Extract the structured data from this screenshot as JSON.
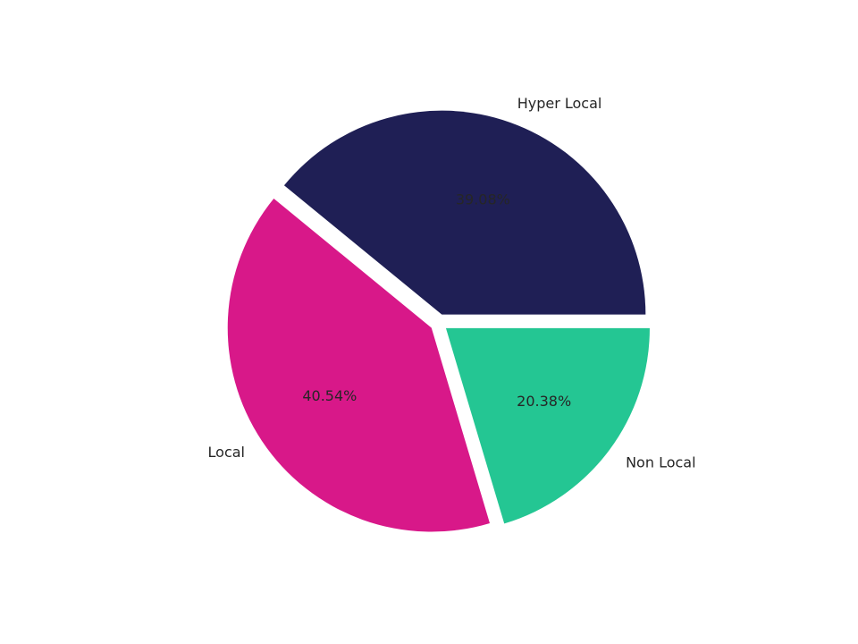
{
  "chart_data": {
    "type": "pie",
    "title": "",
    "slices": [
      {
        "label": "Hyper Local",
        "value": 39.08,
        "display": "39.08%",
        "color": "#1f1f55"
      },
      {
        "label": "Local",
        "value": 40.54,
        "display": "40.54%",
        "color": "#d81889"
      },
      {
        "label": "Non Local",
        "value": 20.38,
        "display": "20.38%",
        "color": "#24c693"
      }
    ],
    "start_angle_deg": 0,
    "direction": "counterclockwise",
    "exploded": true,
    "legend": "none"
  }
}
